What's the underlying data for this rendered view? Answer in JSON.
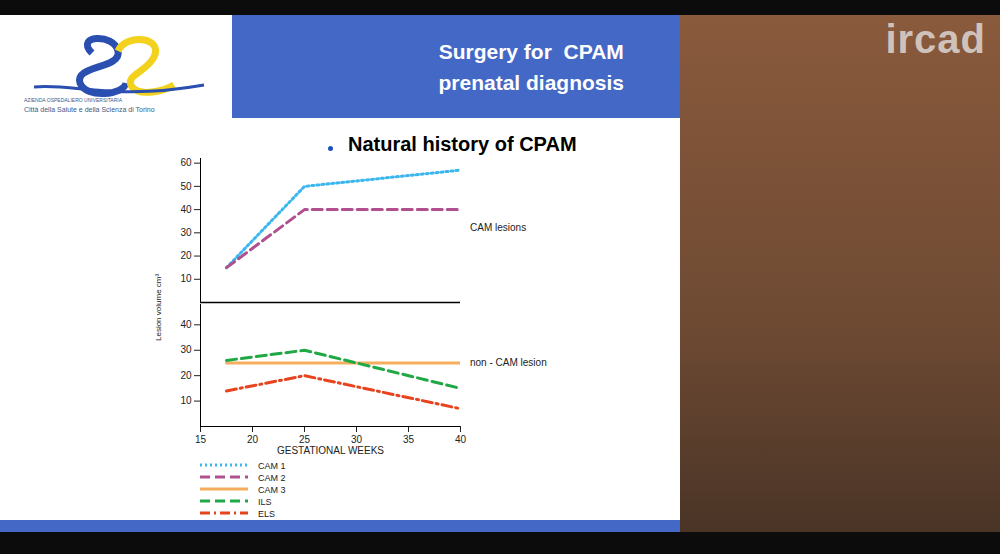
{
  "slide": {
    "title": [
      "Surgery for  CPAM",
      "prenatal diagnosis"
    ],
    "logo_text": [
      "AZIENDA OSPEDALIERO UNIVERSITARIA",
      "Città della Salute e della Scienza di Torino"
    ],
    "watermark": "ircad"
  },
  "chart_data": [
    {
      "type": "line",
      "title": "Natural history of CPAM",
      "ylabel": "Lesion volume cm³",
      "annotation": "CAM lesions",
      "xlim": [
        15,
        40
      ],
      "xticks": [
        15,
        20,
        25,
        30,
        35,
        40
      ],
      "tick_labels": "y",
      "ylim": [
        0,
        62
      ],
      "yticks": [
        10,
        20,
        30,
        40,
        50,
        60
      ],
      "series": [
        {
          "name": "CAM 1",
          "color": "#3ab7ef",
          "line_style": "dotted",
          "x": [
            17.5,
            25,
            40
          ],
          "values": [
            15,
            50,
            57
          ]
        },
        {
          "name": "CAM 2",
          "color": "#b0508f",
          "line_style": "dashed",
          "x": [
            17.5,
            25,
            40
          ],
          "values": [
            15,
            40,
            40
          ]
        }
      ]
    },
    {
      "type": "line",
      "annotation": "non - CAM lesion",
      "xlabel": "GESTATIONAL WEEKS",
      "xlim": [
        15,
        40
      ],
      "xticks": [
        15,
        20,
        25,
        30,
        35,
        40
      ],
      "ylim": [
        0,
        48
      ],
      "yticks": [
        10,
        20,
        30,
        40
      ],
      "legend": "bottom",
      "series": [
        {
          "name": "CAM 3",
          "color": "#f5ae5e",
          "line_style": "solid",
          "x": [
            17.5,
            25,
            40
          ],
          "values": [
            25,
            25,
            25
          ]
        },
        {
          "name": "ILS",
          "color": "#1fa844",
          "line_style": "dashed",
          "x": [
            17.5,
            25,
            40
          ],
          "values": [
            26,
            30,
            15
          ]
        },
        {
          "name": "ELS",
          "color": "#e8431f",
          "line_style": "dashdot",
          "x": [
            17.5,
            25,
            40
          ],
          "values": [
            14,
            20,
            7
          ]
        }
      ]
    }
  ]
}
